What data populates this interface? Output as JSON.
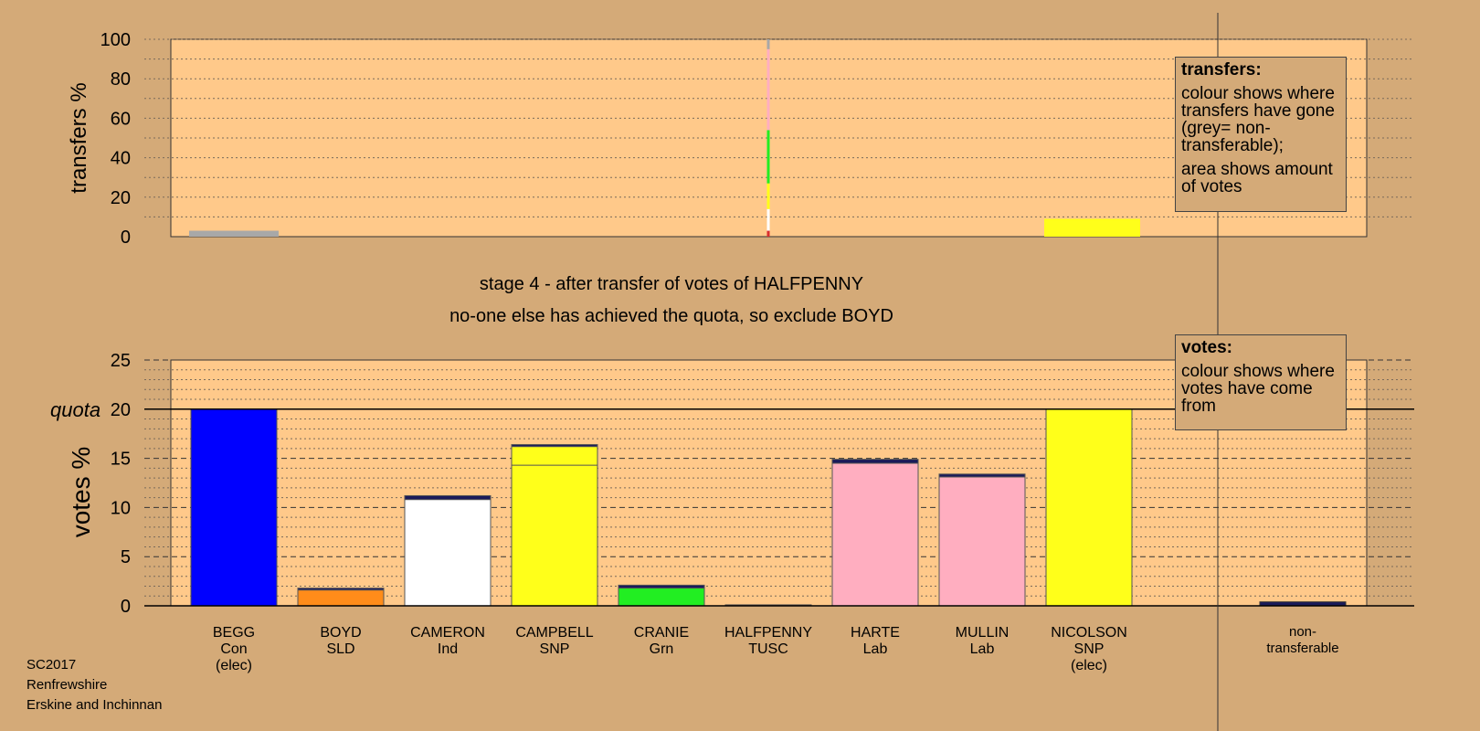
{
  "stage": {
    "line1": "stage 4 - after transfer of votes of HALFPENNY",
    "line2": "no-one else has achieved the quota, so exclude BOYD"
  },
  "meta": {
    "election": "SC2017",
    "council": "Renfrewshire",
    "ward": "Erskine and Inchinnan"
  },
  "legend_transfers": {
    "title": "transfers:",
    "para1": "colour shows where transfers have gone (grey= non-transferable);",
    "para2": "area shows amount of votes"
  },
  "legend_votes": {
    "title": "votes:",
    "para1": "colour shows where votes have come from"
  },
  "colors": {
    "background": "#d4aa78",
    "plot_background": "#ffc98a",
    "Con": "#0000ff",
    "SLD": "#ff8c1a",
    "Ind": "#ffffff",
    "SNP": "#ffff1a",
    "Grn": "#22ee22",
    "Lab": "#ffaec0",
    "TUSC": "#d83030",
    "nontransferable_top": "#1a1a5a",
    "grey": "#a8a8a8"
  },
  "chart_data": [
    {
      "type": "bar",
      "ylabel": "transfers %",
      "ylim": [
        0,
        100
      ],
      "yticks": [
        0,
        20,
        40,
        60,
        80,
        100
      ],
      "grid": true,
      "bars": [
        {
          "category": "BEGG",
          "value": 3,
          "color": "#a8a8a8"
        },
        {
          "category": "NICOLSON",
          "value": 9,
          "color": "#ffff1a"
        }
      ],
      "thin_stack": {
        "category": "HALFPENNY",
        "segments": [
          {
            "from": 0,
            "to": 3,
            "color": "#d83030"
          },
          {
            "from": 3,
            "to": 14,
            "color": "#ffffff"
          },
          {
            "from": 14,
            "to": 27,
            "color": "#ffff1a"
          },
          {
            "from": 27,
            "to": 54,
            "color": "#22ee22"
          },
          {
            "from": 54,
            "to": 95,
            "color": "#ffaec0"
          },
          {
            "from": 95,
            "to": 100,
            "color": "#a8a8a8"
          }
        ]
      }
    },
    {
      "type": "bar",
      "ylabel": "votes %",
      "ylim": [
        0,
        25
      ],
      "yticks": [
        0,
        5,
        10,
        15,
        20,
        25
      ],
      "quota": 20,
      "quota_label": "quota",
      "grid": true,
      "categories": [
        {
          "name": "BEGG",
          "party": "Con",
          "status": "(elec)"
        },
        {
          "name": "BOYD",
          "party": "SLD",
          "status": ""
        },
        {
          "name": "CAMERON",
          "party": "Ind",
          "status": ""
        },
        {
          "name": "CAMPBELL",
          "party": "SNP",
          "status": ""
        },
        {
          "name": "CRANIE",
          "party": "Grn",
          "status": ""
        },
        {
          "name": "HALFPENNY",
          "party": "TUSC",
          "status": ""
        },
        {
          "name": "HARTE",
          "party": "Lab",
          "status": ""
        },
        {
          "name": "MULLIN",
          "party": "Lab",
          "status": ""
        },
        {
          "name": "NICOLSON",
          "party": "SNP",
          "status": "(elec)"
        }
      ],
      "nontransferable": {
        "line1": "non-",
        "line2": "transferable",
        "value": 0.4
      },
      "bars": [
        {
          "category": "BEGG",
          "segments": [
            {
              "value": 20,
              "color": "#0000ff"
            }
          ]
        },
        {
          "category": "BOYD",
          "segments": [
            {
              "value": 1.6,
              "color": "#ff8c1a"
            },
            {
              "value": 0.2,
              "color": "#1a1a5a"
            }
          ]
        },
        {
          "category": "CAMERON",
          "segments": [
            {
              "value": 10.8,
              "color": "#ffffff"
            },
            {
              "value": 0.4,
              "color": "#1a1a5a"
            }
          ]
        },
        {
          "category": "CAMPBELL",
          "segments": [
            {
              "value": 14.3,
              "color": "#ffff1a"
            },
            {
              "value": 1.9,
              "color": "#ffff1a"
            },
            {
              "value": 0.2,
              "color": "#1a1a5a"
            }
          ]
        },
        {
          "category": "CRANIE",
          "segments": [
            {
              "value": 1.8,
              "color": "#22ee22"
            },
            {
              "value": 0.3,
              "color": "#1a1a5a"
            }
          ]
        },
        {
          "category": "HALFPENNY",
          "segments": [
            {
              "value": 0.1,
              "color": "#d83030"
            }
          ]
        },
        {
          "category": "HARTE",
          "segments": [
            {
              "value": 14.5,
              "color": "#ffaec0"
            },
            {
              "value": 0.4,
              "color": "#1a1a5a"
            }
          ]
        },
        {
          "category": "MULLIN",
          "segments": [
            {
              "value": 13.1,
              "color": "#ffaec0"
            },
            {
              "value": 0.3,
              "color": "#1a1a5a"
            }
          ]
        },
        {
          "category": "NICOLSON",
          "segments": [
            {
              "value": 20,
              "color": "#ffff1a"
            }
          ]
        }
      ]
    }
  ]
}
